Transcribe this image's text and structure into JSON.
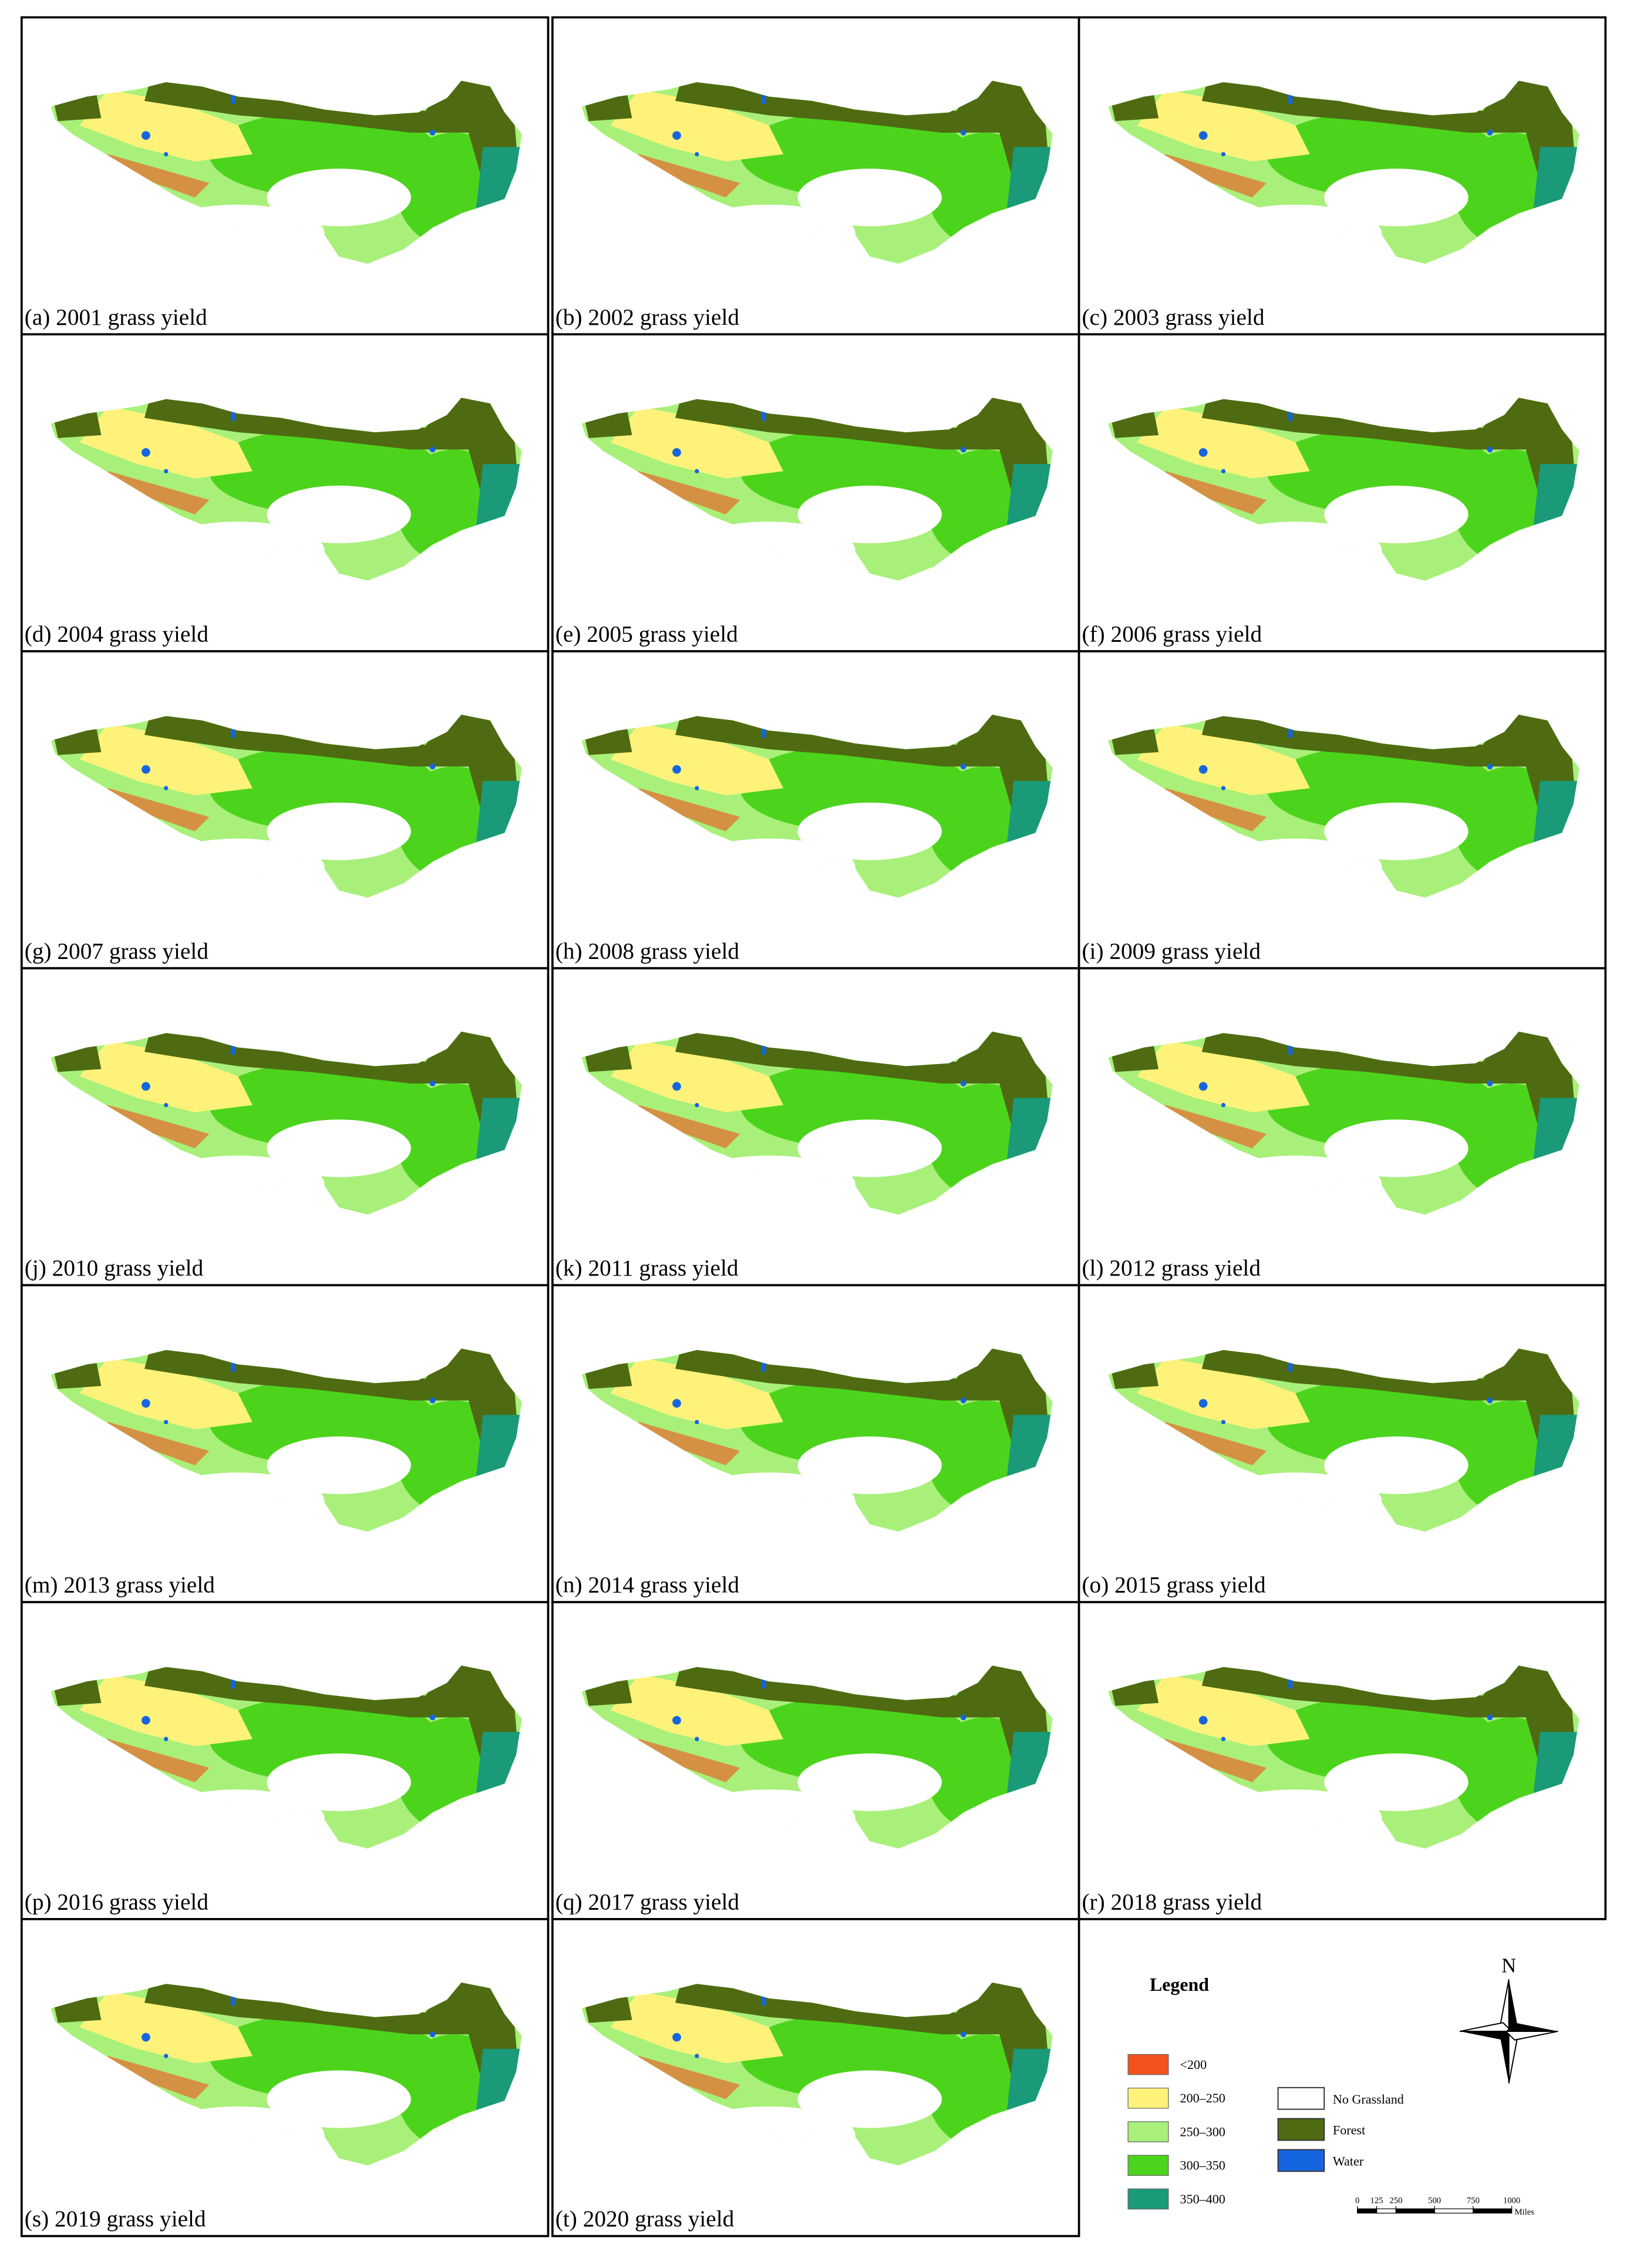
{
  "panels": [
    {
      "label": "(a) 2001 grass yield"
    },
    {
      "label": "(b) 2002 grass yield"
    },
    {
      "label": "(c) 2003 grass yield"
    },
    {
      "label": "(d) 2004 grass yield"
    },
    {
      "label": "(e) 2005 grass yield"
    },
    {
      "label": "(f) 2006 grass yield"
    },
    {
      "label": "(g) 2007 grass yield"
    },
    {
      "label": "(h) 2008 grass yield"
    },
    {
      "label": "(i) 2009 grass yield"
    },
    {
      "label": "(j) 2010 grass yield"
    },
    {
      "label": "(k) 2011 grass yield"
    },
    {
      "label": "(l) 2012 grass yield"
    },
    {
      "label": "(m) 2013 grass yield"
    },
    {
      "label": "(n) 2014 grass yield"
    },
    {
      "label": "(o) 2015 grass yield"
    },
    {
      "label": "(p) 2016 grass yield"
    },
    {
      "label": "(q) 2017 grass yield"
    },
    {
      "label": "(r) 2018 grass yield"
    },
    {
      "label": "(s) 2019 grass yield"
    },
    {
      "label": "(t) 2020 grass yield"
    }
  ],
  "legend": {
    "title": "Legend",
    "yield_classes": [
      {
        "label": "<200",
        "color": "#f4511e"
      },
      {
        "label": "200–250",
        "color": "#fff27a"
      },
      {
        "label": "250–300",
        "color": "#a8f07a"
      },
      {
        "label": "300–350",
        "color": "#4cd41c"
      },
      {
        "label": "350–400",
        "color": "#1a9a78"
      }
    ],
    "land_classes": [
      {
        "label": "No Grassland",
        "color": "#ffffff"
      },
      {
        "label": "Forest",
        "color": "#4e6b12"
      },
      {
        "label": "Water",
        "color": "#1565e0"
      }
    ]
  },
  "north": "N",
  "scale": {
    "ticks": [
      0,
      125,
      250,
      500,
      750,
      1000
    ],
    "unit": "Miles"
  }
}
